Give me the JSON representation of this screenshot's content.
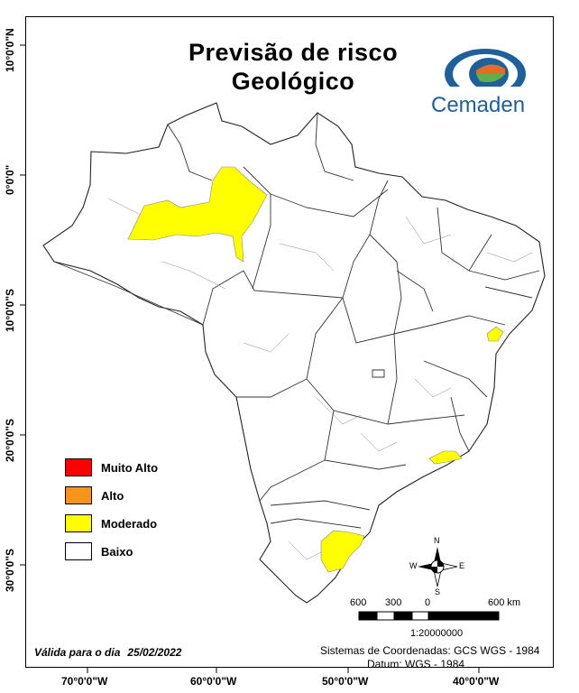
{
  "title_line1": "Previsão de risco",
  "title_line2": "Geológico",
  "logo": {
    "name": "Cemaden",
    "colors": [
      "#1f5f9a",
      "#e36c2b",
      "#5fb04a"
    ]
  },
  "legend": [
    {
      "label": "Muito Alto",
      "color": "#ff0000"
    },
    {
      "label": "Alto",
      "color": "#f7941d"
    },
    {
      "label": "Moderado",
      "color": "#ffff00"
    },
    {
      "label": "Baixo",
      "color": "#ffffff"
    }
  ],
  "validity": {
    "label": "Válida para o dia",
    "date": "25/02/2022"
  },
  "coordinate_system": {
    "line1": "Sistemas de Coordenadas: GCS WGS - 1984",
    "line2": "Datum: WGS - 1984"
  },
  "longitude_labels": [
    "70°0'0\"W",
    "60°0'0\"W",
    "50°0'0\"W",
    "40°0'0\"W"
  ],
  "latitude_labels": [
    "10°0'0\"N",
    "0°0'0\"",
    "10°0'0\"S",
    "20°0'0\"S",
    "30°0'0\"S"
  ],
  "scale_bar": {
    "labels": [
      "600",
      "300",
      "0",
      "600 km"
    ],
    "ratio": "1:20000000"
  },
  "compass": {
    "n": "N",
    "s": "S",
    "e": "E",
    "w": "W"
  }
}
